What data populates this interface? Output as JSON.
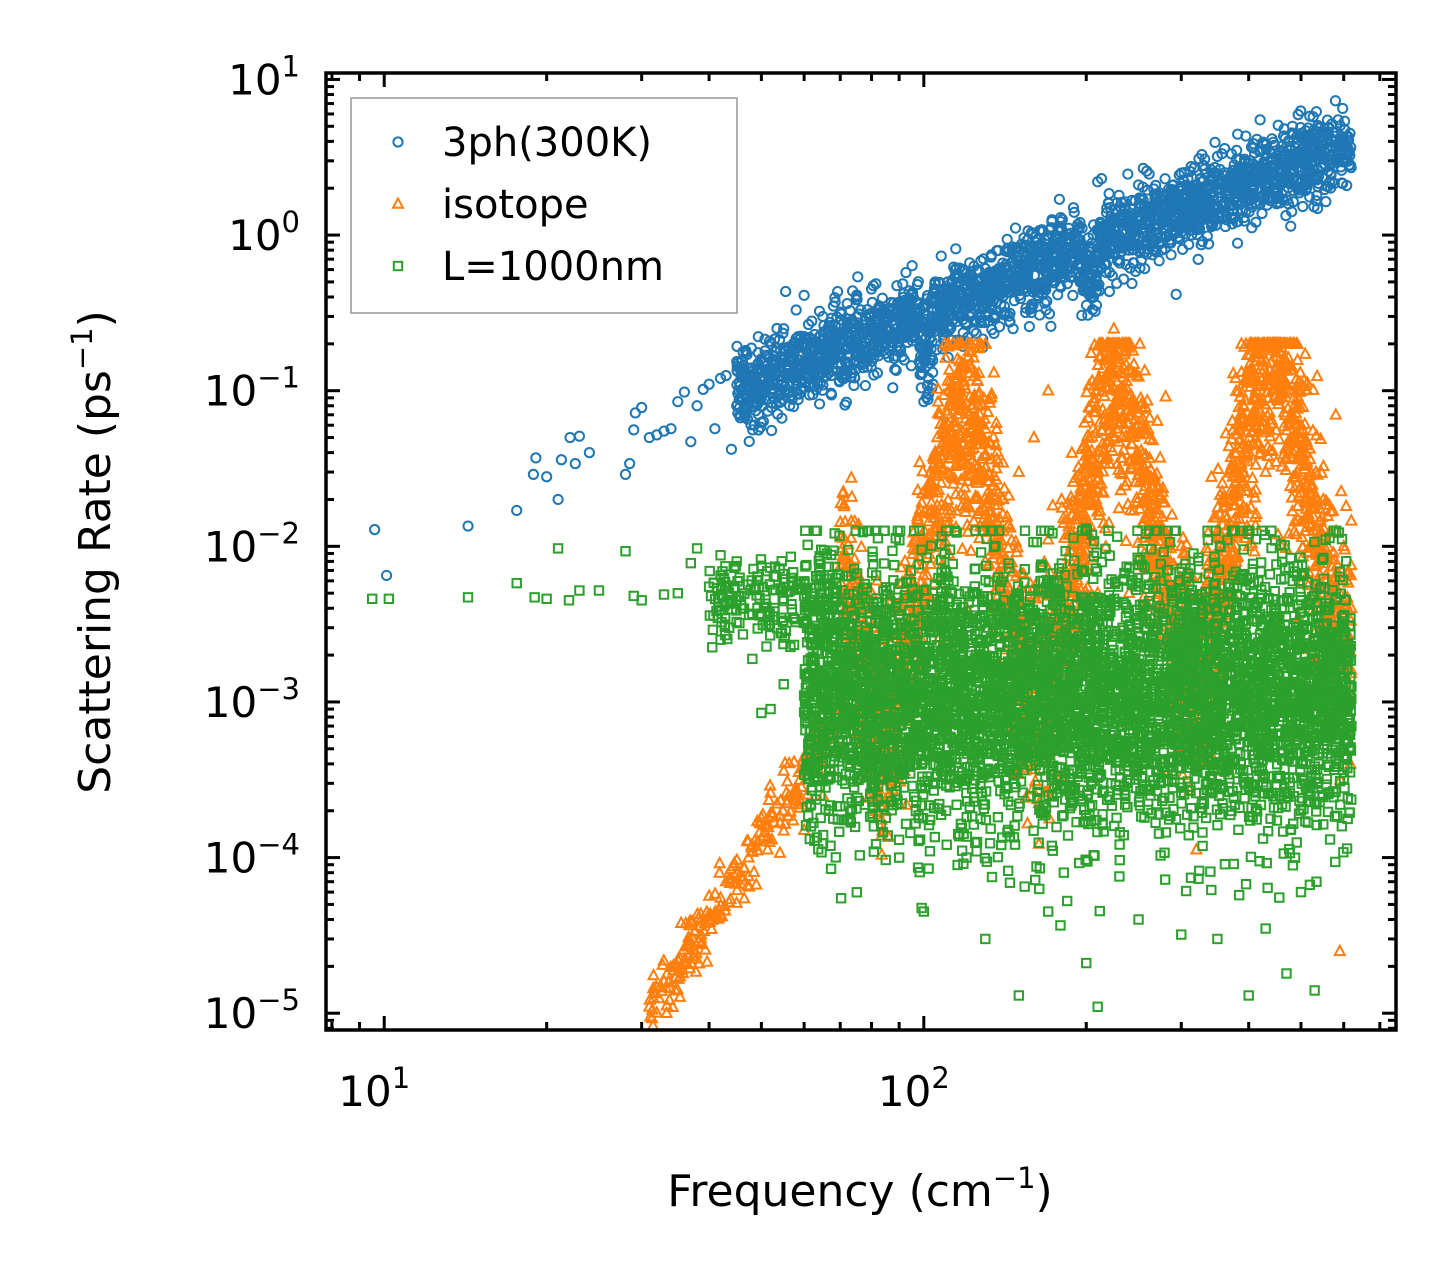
{
  "chart_data": {
    "type": "scatter",
    "xscale": "log",
    "yscale": "log",
    "xlabel": "Frequency (cm",
    "xlabel_sup": "−1",
    "xlabel_end": ")",
    "ylabel": "Scattering Rate (ps",
    "ylabel_sup": "−1",
    "ylabel_end": ")",
    "xlim": [
      7.8,
      750
    ],
    "ylim": [
      7.8e-06,
      11
    ],
    "xticks": [
      {
        "base": "10",
        "exp": "1",
        "value": 10
      },
      {
        "base": "10",
        "exp": "2",
        "value": 100
      }
    ],
    "yticks": [
      {
        "base": "10",
        "exp": "1",
        "value": 10
      },
      {
        "base": "10",
        "exp": "0",
        "value": 1
      },
      {
        "base": "10",
        "exp": "−1",
        "value": 0.1
      },
      {
        "base": "10",
        "exp": "−2",
        "value": 0.01
      },
      {
        "base": "10",
        "exp": "−3",
        "value": 0.001
      },
      {
        "base": "10",
        "exp": "−4",
        "value": 0.0001
      },
      {
        "base": "10",
        "exp": "−5",
        "value": 1e-05
      }
    ],
    "grid": false,
    "legend_position": "top-left",
    "series": [
      {
        "name": "3ph(300K)",
        "marker": "circle",
        "color": "#1f77b4",
        "points": [
          [
            9.6,
            0.0128
          ],
          [
            10.1,
            0.0065
          ],
          [
            14.3,
            0.0135
          ],
          [
            17.6,
            0.017
          ],
          [
            18.9,
            0.029
          ],
          [
            19.1,
            0.037
          ],
          [
            20,
            0.028
          ],
          [
            21,
            0.02
          ],
          [
            21.3,
            0.036
          ],
          [
            22.1,
            0.05
          ],
          [
            22.6,
            0.034
          ],
          [
            23,
            0.051
          ],
          [
            24,
            0.04
          ],
          [
            28,
            0.029
          ],
          [
            28.5,
            0.034
          ],
          [
            29,
            0.056
          ],
          [
            29.2,
            0.072
          ],
          [
            30,
            0.078
          ],
          [
            31,
            0.05
          ],
          [
            32,
            0.052
          ],
          [
            33,
            0.055
          ],
          [
            34,
            0.057
          ],
          [
            35,
            0.085
          ],
          [
            36,
            0.098
          ],
          [
            37,
            0.047
          ],
          [
            38,
            0.08
          ],
          [
            39,
            0.102
          ],
          [
            40,
            0.11
          ],
          [
            41,
            0.057
          ],
          [
            42,
            0.12
          ],
          [
            43,
            0.125
          ],
          [
            44,
            0.042
          ],
          [
            45,
            0.08
          ],
          [
            46,
            0.13
          ],
          [
            47,
            0.075
          ],
          [
            48,
            0.14
          ],
          [
            50,
            0.16
          ],
          [
            52,
            0.2
          ],
          [
            55,
            0.25
          ],
          [
            58,
            0.33
          ],
          [
            60,
            0.41
          ],
          [
            62,
            0.28
          ],
          [
            65,
            0.3
          ],
          [
            68,
            0.35
          ],
          [
            70,
            0.32
          ],
          [
            75,
            0.4
          ],
          [
            80,
            0.45
          ],
          [
            85,
            0.25
          ],
          [
            90,
            0.35
          ],
          [
            95,
            0.3
          ],
          [
            100,
            0.085
          ],
          [
            102,
            0.12
          ],
          [
            105,
            0.5
          ],
          [
            110,
            0.4
          ],
          [
            120,
            0.45
          ],
          [
            130,
            0.55
          ],
          [
            140,
            0.45
          ],
          [
            150,
            0.65
          ],
          [
            160,
            0.8
          ],
          [
            170,
            0.95
          ],
          [
            180,
            1.1
          ],
          [
            190,
            1.4
          ],
          [
            200,
            0.6
          ],
          [
            210,
            2.2
          ],
          [
            220,
            1.6
          ],
          [
            230,
            1.8
          ],
          [
            250,
            2.1
          ],
          [
            280,
            2.3
          ],
          [
            300,
            2.5
          ],
          [
            330,
            2.8
          ],
          [
            350,
            3.2
          ],
          [
            380,
            3.5
          ],
          [
            400,
            2.9
          ],
          [
            420,
            5.5
          ],
          [
            450,
            3.0
          ],
          [
            480,
            2.5
          ],
          [
            500,
            3.2
          ],
          [
            550,
            4.5
          ],
          [
            600,
            4.2
          ]
        ]
      },
      {
        "name": "isotope",
        "marker": "triangle",
        "color": "#ff7f0e",
        "points": [
          [
            31,
            1.1e-05
          ],
          [
            33,
            1.6e-05
          ],
          [
            35,
            2.2e-05
          ],
          [
            37,
            2.8e-05
          ],
          [
            40,
            4e-05
          ],
          [
            42,
            5.5e-05
          ],
          [
            45,
            8e-05
          ],
          [
            48,
            0.00012
          ],
          [
            50,
            0.00018
          ],
          [
            52,
            0.00026
          ],
          [
            55,
            0.00036
          ],
          [
            58,
            0.00025
          ],
          [
            60,
            0.00015
          ],
          [
            65,
            0.00025
          ],
          [
            70,
            0.0005
          ],
          [
            72,
            0.0009
          ],
          [
            80,
            0.004
          ],
          [
            90,
            0.003
          ],
          [
            100,
            0.01
          ],
          [
            110,
            0.005
          ],
          [
            120,
            0.004
          ],
          [
            130,
            0.008
          ],
          [
            140,
            0.02
          ],
          [
            150,
            0.03
          ],
          [
            160,
            0.05
          ],
          [
            170,
            0.1
          ],
          [
            180,
            0.02
          ],
          [
            200,
            0.03
          ],
          [
            210,
            0.005
          ],
          [
            220,
            0.12
          ],
          [
            225,
            0.25
          ],
          [
            240,
            0.005
          ],
          [
            260,
            0.008
          ],
          [
            300,
            0.01
          ],
          [
            330,
            0.005
          ],
          [
            360,
            0.02
          ],
          [
            400,
            0.01
          ],
          [
            430,
            0.03
          ],
          [
            460,
            0.01
          ],
          [
            500,
            0.06
          ],
          [
            550,
            0.02
          ],
          [
            580,
            0.07
          ],
          [
            600,
            0.01
          ],
          [
            620,
            0.004
          ],
          [
            590,
            2.5e-05
          ]
        ]
      },
      {
        "name": "L=1000nm",
        "marker": "square",
        "color": "#2ca02c",
        "points": [
          [
            9.5,
            0.0046
          ],
          [
            10.2,
            0.0046
          ],
          [
            14.3,
            0.0047
          ],
          [
            17.6,
            0.0058
          ],
          [
            19,
            0.0047
          ],
          [
            20,
            0.0046
          ],
          [
            21,
            0.0097
          ],
          [
            22,
            0.0045
          ],
          [
            23,
            0.0052
          ],
          [
            25,
            0.0052
          ],
          [
            28,
            0.0093
          ],
          [
            29,
            0.0048
          ],
          [
            30,
            0.0045
          ],
          [
            33,
            0.0049
          ],
          [
            35,
            0.005
          ],
          [
            37,
            0.0078
          ],
          [
            38,
            0.0097
          ],
          [
            40,
            0.0055
          ],
          [
            42,
            0.0065
          ],
          [
            45,
            0.008
          ],
          [
            50,
            0.0075
          ],
          [
            55,
            0.0055
          ],
          [
            60,
            0.0048
          ],
          [
            65,
            0.0045
          ],
          [
            70,
            0.004
          ],
          [
            50,
            0.00085
          ],
          [
            52,
            0.0009
          ],
          [
            55,
            0.0013
          ],
          [
            60,
            0.0011
          ],
          [
            75,
            0.00055
          ],
          [
            80,
            0.0003
          ],
          [
            85,
            0.00018
          ],
          [
            90,
            0.0001
          ],
          [
            100,
            4.5e-05
          ],
          [
            110,
            0.0002
          ],
          [
            120,
            0.0001
          ],
          [
            130,
            3e-05
          ],
          [
            150,
            1.3e-05
          ],
          [
            170,
            4.5e-05
          ],
          [
            200,
            2.1e-05
          ],
          [
            210,
            1.1e-05
          ],
          [
            250,
            4e-05
          ],
          [
            300,
            3.2e-05
          ],
          [
            350,
            3e-05
          ],
          [
            400,
            1.3e-05
          ],
          [
            430,
            3.5e-05
          ],
          [
            470,
            1.8e-05
          ],
          [
            500,
            6e-05
          ],
          [
            530,
            1.4e-05
          ],
          [
            150,
            0.0048
          ],
          [
            200,
            0.013
          ],
          [
            300,
            0.005
          ],
          [
            400,
            0.012
          ],
          [
            500,
            0.0045
          ],
          [
            600,
            0.003
          ]
        ]
      }
    ]
  }
}
